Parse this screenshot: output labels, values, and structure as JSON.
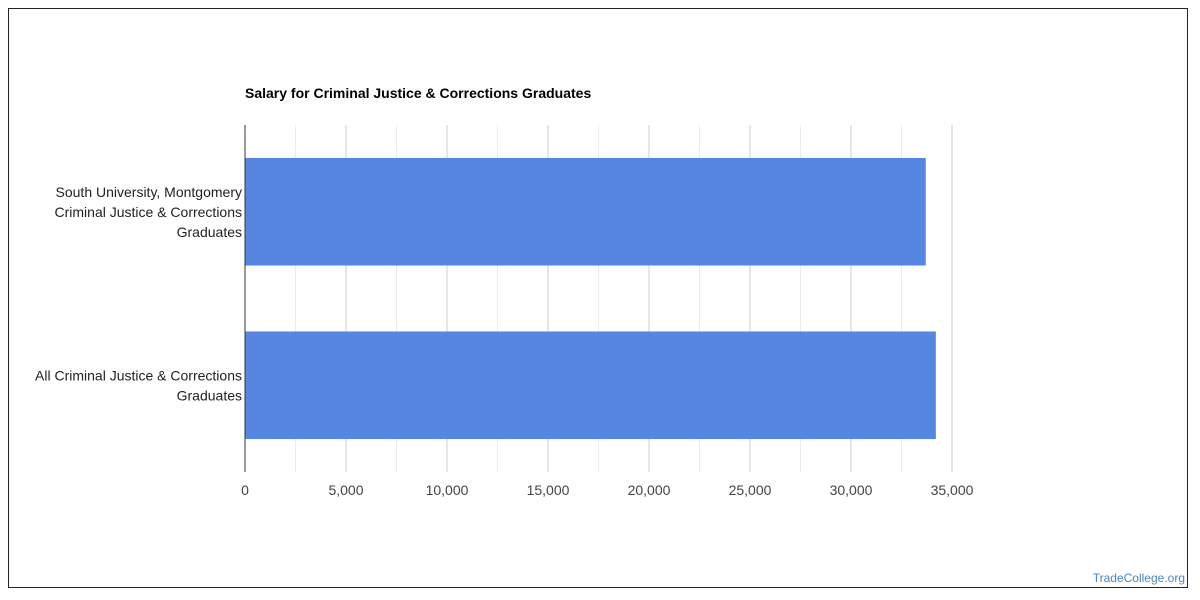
{
  "chart_data": {
    "type": "bar",
    "orientation": "horizontal",
    "title": "Salary for Criminal Justice & Corrections Graduates",
    "categories": [
      [
        "South University, Montgomery",
        "Criminal Justice & Corrections",
        "Graduates"
      ],
      [
        "All Criminal Justice & Corrections",
        "Graduates"
      ]
    ],
    "values": [
      33700,
      34200
    ],
    "xlim": [
      0,
      35000
    ],
    "xticks": [
      0,
      5000,
      10000,
      15000,
      20000,
      25000,
      30000,
      35000
    ],
    "xtick_labels": [
      "0",
      "5,000",
      "10,000",
      "15,000",
      "20,000",
      "25,000",
      "30,000",
      "35,000"
    ],
    "bar_color": "#5486e2",
    "grid": true
  },
  "watermark": "TradeCollege.org"
}
